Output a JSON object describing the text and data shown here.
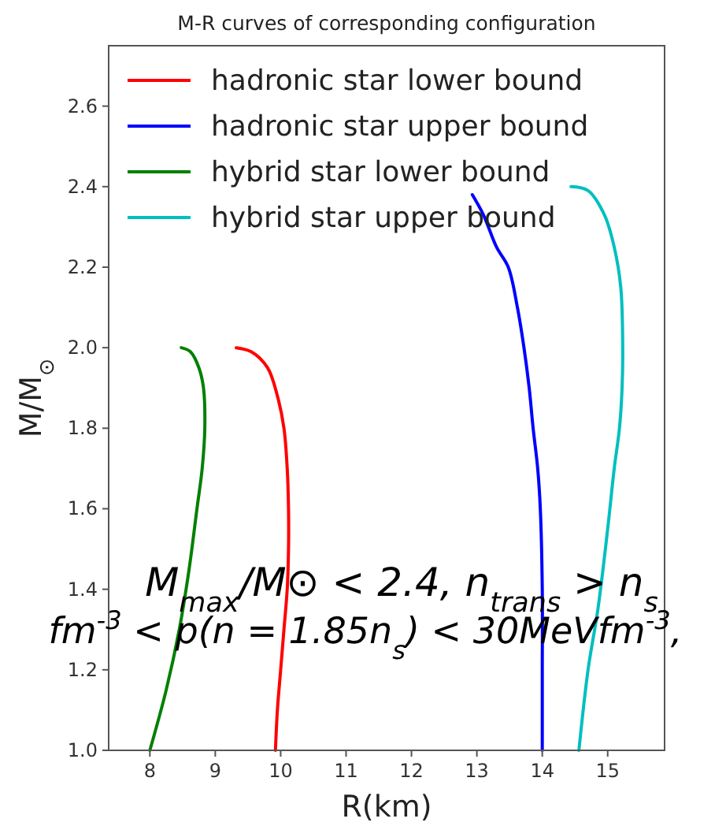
{
  "chart_data": {
    "type": "line",
    "title": "M-R curves of corresponding configuration",
    "xlabel": "R(km)",
    "ylabel": "M/M$_{⊙}$",
    "xlim": [
      7.37,
      15.87
    ],
    "xticks": [
      8,
      9,
      10,
      11,
      12,
      13,
      14,
      15
    ],
    "ylim": [
      1.0,
      2.75
    ],
    "yticks": [
      {
        "value": 1,
        "label": "1.0"
      },
      1.2,
      1.4,
      1.6,
      1.8,
      {
        "value": 2,
        "label": "2.0"
      },
      2.2,
      2.4,
      2.6
    ],
    "grid": false,
    "legend": "top left",
    "marker": "none",
    "line_style": "solid",
    "series": [
      {
        "name": "hadronic star lower bound",
        "color": "#ff0000",
        "x": [
          9.32,
          9.55,
          9.8,
          9.95,
          10.05,
          10.1,
          10.12,
          10.12,
          10.1,
          10.05,
          10.0,
          9.95,
          9.92
        ],
        "values": [
          2.0,
          1.99,
          1.95,
          1.88,
          1.8,
          1.7,
          1.6,
          1.5,
          1.4,
          1.3,
          1.2,
          1.1,
          1.0
        ]
      },
      {
        "name": "hadronic star upper bound",
        "color": "#0000ff",
        "x": [
          12.93,
          13.1,
          13.3,
          13.48,
          13.62,
          13.72,
          13.8,
          13.86,
          13.93,
          13.97,
          14.0,
          14.0,
          14.0
        ],
        "values": [
          2.38,
          2.33,
          2.25,
          2.2,
          2.1,
          2.0,
          1.9,
          1.8,
          1.7,
          1.6,
          1.4,
          1.2,
          1.0
        ]
      },
      {
        "name": "hybrid star lower bound",
        "color": "#008000",
        "x": [
          8.48,
          8.62,
          8.75,
          8.82,
          8.84,
          8.8,
          8.72,
          8.6,
          8.45,
          8.25,
          8.0
        ],
        "values": [
          2.0,
          1.99,
          1.95,
          1.9,
          1.8,
          1.7,
          1.6,
          1.45,
          1.3,
          1.15,
          1.0
        ]
      },
      {
        "name": "hybrid star upper bound",
        "color": "#00bfbf",
        "x": [
          14.44,
          14.7,
          14.95,
          15.1,
          15.2,
          15.23,
          15.22,
          15.18,
          15.1,
          15.0,
          14.85,
          14.7,
          14.56
        ],
        "values": [
          2.4,
          2.39,
          2.33,
          2.25,
          2.15,
          2.0,
          1.9,
          1.8,
          1.7,
          1.55,
          1.35,
          1.2,
          1.0
        ]
      }
    ],
    "annotations": [
      "M$_{max}$/M⊙ < 2.4, n$_{trans}$ > n$_{s}$",
      "fm$^{-3}$ < p(n = 1.85n$_{s}$) < 30MeVfm$^{-3}$,"
    ]
  }
}
